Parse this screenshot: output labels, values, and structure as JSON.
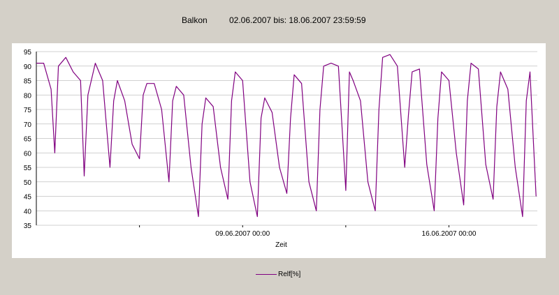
{
  "header": {
    "location": "Balkon",
    "range": "02.06.2007 bis: 18.06.2007 23:59:59"
  },
  "legend": {
    "label": "Relf[%]"
  },
  "colors": {
    "series": "#800080",
    "grid": "#c0c0c0",
    "background": "#d4d0c8",
    "plot": "#ffffff"
  },
  "chart_data": {
    "type": "line",
    "title": "",
    "xlabel": "Zeit",
    "ylabel": "",
    "ylim": [
      35,
      95
    ],
    "yticks": [
      35,
      40,
      45,
      50,
      55,
      60,
      65,
      70,
      75,
      80,
      85,
      90,
      95
    ],
    "xlim": [
      "2007-06-02 00:00",
      "2007-06-19 00:00"
    ],
    "xticks": [
      {
        "x": "2007-06-05 12:00",
        "label": ""
      },
      {
        "x": "2007-06-09 00:00",
        "label": "09.06.2007 00:00"
      },
      {
        "x": "2007-06-12 12:00",
        "label": ""
      },
      {
        "x": "2007-06-16 00:00",
        "label": "16.06.2007 00:00"
      }
    ],
    "grid": true,
    "legend_position": "bottom",
    "series": [
      {
        "name": "Relf[%]",
        "x": [
          "2007-06-02 00:00",
          "2007-06-02 06:00",
          "2007-06-02 12:00",
          "2007-06-02 15:00",
          "2007-06-02 18:00",
          "2007-06-03 00:00",
          "2007-06-03 06:00",
          "2007-06-03 12:00",
          "2007-06-03 15:00",
          "2007-06-03 18:00",
          "2007-06-04 00:00",
          "2007-06-04 06:00",
          "2007-06-04 12:00",
          "2007-06-04 15:00",
          "2007-06-04 18:00",
          "2007-06-05 00:00",
          "2007-06-05 06:00",
          "2007-06-05 12:00",
          "2007-06-05 15:00",
          "2007-06-05 18:00",
          "2007-06-06 00:00",
          "2007-06-06 06:00",
          "2007-06-06 12:00",
          "2007-06-06 15:00",
          "2007-06-06 18:00",
          "2007-06-07 00:00",
          "2007-06-07 06:00",
          "2007-06-07 12:00",
          "2007-06-07 15:00",
          "2007-06-07 18:00",
          "2007-06-08 00:00",
          "2007-06-08 06:00",
          "2007-06-08 12:00",
          "2007-06-08 15:00",
          "2007-06-08 18:00",
          "2007-06-09 00:00",
          "2007-06-09 06:00",
          "2007-06-09 12:00",
          "2007-06-09 15:00",
          "2007-06-09 18:00",
          "2007-06-10 00:00",
          "2007-06-10 06:00",
          "2007-06-10 12:00",
          "2007-06-10 15:00",
          "2007-06-10 18:00",
          "2007-06-11 00:00",
          "2007-06-11 06:00",
          "2007-06-11 12:00",
          "2007-06-11 15:00",
          "2007-06-11 18:00",
          "2007-06-12 00:00",
          "2007-06-12 06:00",
          "2007-06-12 12:00",
          "2007-06-12 15:00",
          "2007-06-12 18:00",
          "2007-06-13 00:00",
          "2007-06-13 06:00",
          "2007-06-13 12:00",
          "2007-06-13 15:00",
          "2007-06-13 18:00",
          "2007-06-14 00:00",
          "2007-06-14 06:00",
          "2007-06-14 12:00",
          "2007-06-14 15:00",
          "2007-06-14 18:00",
          "2007-06-15 00:00",
          "2007-06-15 06:00",
          "2007-06-15 12:00",
          "2007-06-15 15:00",
          "2007-06-15 18:00",
          "2007-06-16 00:00",
          "2007-06-16 06:00",
          "2007-06-16 12:00",
          "2007-06-16 15:00",
          "2007-06-16 18:00",
          "2007-06-17 00:00",
          "2007-06-17 06:00",
          "2007-06-17 12:00",
          "2007-06-17 15:00",
          "2007-06-17 18:00",
          "2007-06-18 00:00",
          "2007-06-18 06:00",
          "2007-06-18 12:00",
          "2007-06-18 15:00",
          "2007-06-18 18:00",
          "2007-06-18 23:00"
        ],
        "values": [
          91,
          91,
          82,
          60,
          90,
          93,
          88,
          85,
          52,
          80,
          91,
          85,
          55,
          78,
          85,
          78,
          63,
          58,
          80,
          84,
          84,
          75,
          50,
          78,
          83,
          80,
          55,
          38,
          70,
          79,
          76,
          55,
          44,
          78,
          88,
          85,
          50,
          38,
          72,
          79,
          74,
          55,
          46,
          72,
          87,
          84,
          50,
          40,
          75,
          90,
          91,
          90,
          47,
          88,
          85,
          78,
          50,
          40,
          75,
          93,
          94,
          90,
          55,
          73,
          88,
          89,
          56,
          40,
          72,
          88,
          85,
          60,
          42,
          78,
          91,
          89,
          56,
          44,
          76,
          88,
          82,
          55,
          38,
          78,
          88,
          45
        ]
      }
    ]
  }
}
